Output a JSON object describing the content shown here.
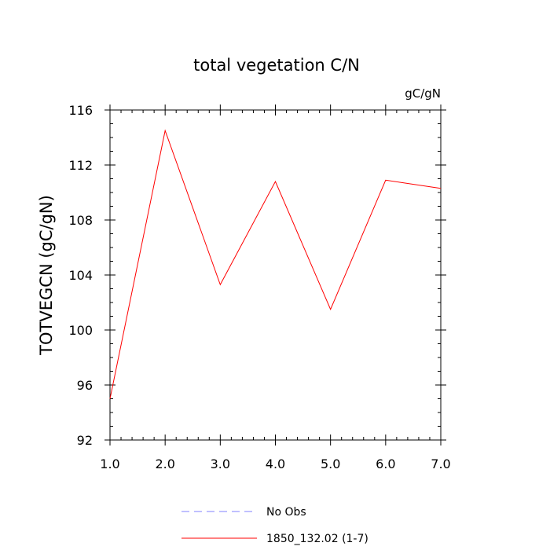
{
  "chart_data": {
    "type": "line",
    "title": "total vegetation C/N",
    "units_label": "gC/gN",
    "ylabel": "TOTVEGCN  (gC/gN)",
    "xlabel": "",
    "xlim": [
      1,
      7
    ],
    "ylim": [
      92,
      116
    ],
    "x_ticks": [
      1,
      2,
      3,
      4,
      5,
      6,
      7
    ],
    "x_tick_labels": [
      "1.0",
      "2.0",
      "3.0",
      "4.0",
      "5.0",
      "6.0",
      "7.0"
    ],
    "y_ticks": [
      92,
      96,
      100,
      104,
      108,
      112,
      116
    ],
    "y_tick_labels": [
      "92",
      "96",
      "100",
      "104",
      "108",
      "112",
      "116"
    ],
    "grid": false,
    "legend_position": "bottom",
    "series": [
      {
        "name": "1850_132.02 (1-7)",
        "color": "#ff0000",
        "style": "solid",
        "x": [
          1,
          2,
          3,
          4,
          5,
          6,
          7
        ],
        "y": [
          95.0,
          114.5,
          103.3,
          110.8,
          101.5,
          110.9,
          110.3
        ]
      }
    ],
    "legend": [
      {
        "label": "No Obs",
        "color": "#8080ff",
        "style": "dashed"
      },
      {
        "label": "1850_132.02 (1-7)",
        "color": "#ff0000",
        "style": "solid"
      }
    ]
  }
}
